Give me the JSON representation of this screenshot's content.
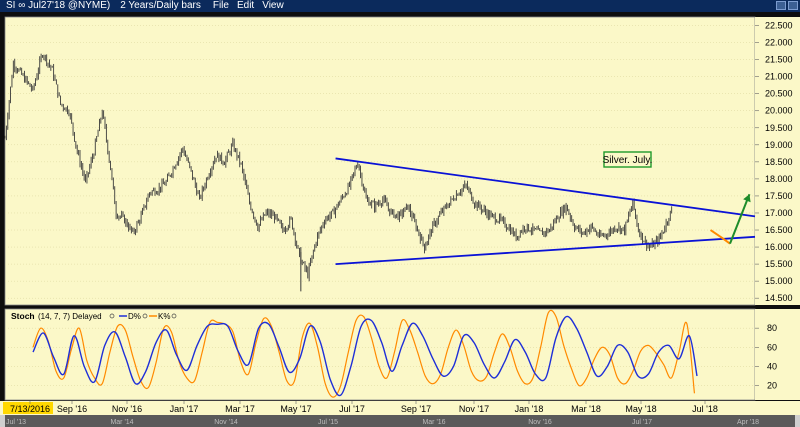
{
  "window": {
    "title": "SI ∞ Jul27'18 @NYME)",
    "interval": "2 Years/Daily bars",
    "menus": [
      "File",
      "Edit",
      "View"
    ]
  },
  "colors": {
    "panel_bg": "#fbf8c8",
    "price": "#3a3a3a",
    "trendline": "#0a12d6",
    "forecast_arrow": "#1e8c2a",
    "forecast_down": "#ff8a00",
    "d_line": "#1e2fd8",
    "k_line": "#ff8a00",
    "annotation_border": "#1e9a2a"
  },
  "chart_data": [
    {
      "type": "line",
      "subtype": "ohlc",
      "annotation": "Silver. July.",
      "y_axis_labels": [
        "22.500",
        "22.000",
        "21.500",
        "21.000",
        "20.500",
        "20.000",
        "19.500",
        "19.000",
        "18.500",
        "18.000",
        "17.500",
        "17.000",
        "16.500",
        "16.000",
        "15.500",
        "15.000",
        "14.500"
      ],
      "ylim": [
        14.3,
        22.75
      ],
      "x_labels": [
        "7/13/2016",
        "Sep '16",
        "Nov '16",
        "Jan '17",
        "Mar '17",
        "May '17",
        "Jul '17",
        "Sep '17",
        "Nov '17",
        "Jan '18",
        "Mar '18",
        "May '18",
        "Jul '18"
      ],
      "overview_labels": [
        "Jul '13",
        "Mar '14",
        "Nov '14",
        "Jul '15",
        "Mar '16",
        "Nov '16",
        "Jul '17",
        "Apr '18"
      ],
      "x_range_index": [
        0,
        540
      ],
      "series": [
        {
          "name": "",
          "x": [
            0,
            6,
            13,
            20,
            27,
            34,
            40,
            46,
            52,
            58,
            64,
            70,
            76,
            80,
            86,
            92,
            98,
            104,
            110,
            116,
            122,
            128,
            134,
            140,
            146,
            152,
            158,
            164,
            170,
            176,
            182,
            188,
            194,
            200,
            206,
            212,
            218,
            224,
            230,
            236,
            242,
            248,
            254,
            260,
            266,
            272,
            278,
            284,
            290,
            296,
            302,
            308,
            314,
            320,
            326,
            332,
            338,
            344,
            350,
            356,
            362,
            368,
            374,
            380,
            386,
            392,
            398,
            404,
            410,
            416,
            422,
            428,
            434,
            440,
            446,
            452,
            456,
            460,
            464,
            468,
            472,
            476,
            480
          ],
          "y": [
            19.2,
            21.4,
            21.0,
            20.6,
            21.7,
            21.2,
            20.2,
            20.0,
            18.8,
            17.9,
            18.8,
            20.0,
            18.3,
            17.0,
            16.8,
            16.4,
            16.9,
            17.6,
            17.7,
            17.9,
            18.4,
            18.9,
            18.2,
            17.4,
            18.1,
            18.7,
            18.5,
            19.0,
            18.4,
            17.3,
            16.6,
            17.0,
            16.9,
            16.5,
            16.8,
            15.7,
            15.2,
            16.2,
            16.8,
            17.0,
            17.4,
            17.8,
            18.5,
            17.4,
            17.2,
            17.4,
            17.0,
            16.9,
            17.2,
            16.6,
            16.0,
            16.6,
            17.0,
            17.3,
            17.6,
            17.8,
            17.3,
            17.1,
            16.9,
            16.8,
            16.6,
            16.3,
            16.6,
            16.5,
            16.4,
            16.5,
            16.9,
            17.2,
            16.6,
            16.4,
            16.6,
            16.3,
            16.4,
            16.6,
            16.5,
            17.3,
            16.5,
            16.2,
            16.0,
            16.1,
            16.3,
            16.7,
            17.1
          ]
        }
      ],
      "trendlines": [
        {
          "x": [
            238,
            540
          ],
          "y": [
            18.6,
            16.9
          ]
        },
        {
          "x": [
            238,
            540
          ],
          "y": [
            15.5,
            16.3
          ]
        }
      ],
      "forecast_arrow": {
        "x": [
          522,
          536
        ],
        "y": [
          16.1,
          17.55
        ]
      },
      "forecast_down": {
        "x": [
          508,
          517,
          522
        ],
        "y": [
          16.5,
          16.25,
          16.1
        ]
      }
    },
    {
      "type": "line",
      "title": "Stoch",
      "params": "(14, 7, 7) Delayed",
      "legend": [
        "D%",
        "K%"
      ],
      "y_axis_labels": [
        "80",
        "60",
        "40",
        "20"
      ],
      "ylim": [
        5,
        100
      ],
      "series": [
        {
          "name": "D%",
          "x": [
            0,
            8,
            16,
            24,
            32,
            40,
            48,
            56,
            64,
            72,
            80,
            88,
            96,
            104,
            112,
            120,
            128,
            136,
            144,
            152,
            160,
            168,
            176,
            184,
            192,
            200,
            208,
            216,
            224,
            232,
            240,
            248,
            256,
            264,
            272,
            280,
            288,
            296,
            304,
            312,
            320,
            328,
            336,
            344,
            352,
            360,
            368,
            376,
            384,
            392,
            400,
            408,
            416,
            424,
            432,
            440,
            448,
            456,
            464,
            472,
            480,
            488,
            496,
            504,
            512,
            518
          ],
          "y": [
            55,
            75,
            50,
            32,
            72,
            40,
            24,
            62,
            76,
            50,
            22,
            35,
            65,
            78,
            52,
            36,
            62,
            82,
            84,
            82,
            56,
            42,
            80,
            84,
            60,
            34,
            48,
            82,
            66,
            26,
            10,
            40,
            82,
            88,
            65,
            35,
            62,
            85,
            72,
            48,
            30,
            40,
            72,
            65,
            42,
            28,
            45,
            68,
            55,
            32,
            28,
            70,
            92,
            80,
            55,
            30,
            40,
            62,
            55,
            30,
            32,
            55,
            62,
            48,
            72,
            30
          ]
        },
        {
          "name": "K%",
          "x": [
            0,
            6,
            12,
            18,
            24,
            30,
            36,
            42,
            48,
            54,
            60,
            66,
            72,
            78,
            84,
            90,
            96,
            102,
            108,
            114,
            120,
            126,
            132,
            138,
            144,
            150,
            156,
            162,
            168,
            174,
            180,
            186,
            192,
            198,
            204,
            210,
            216,
            222,
            228,
            234,
            240,
            246,
            252,
            258,
            264,
            270,
            276,
            282,
            288,
            294,
            300,
            306,
            312,
            318,
            324,
            330,
            336,
            342,
            348,
            354,
            360,
            366,
            372,
            378,
            384,
            390,
            396,
            402,
            408,
            414,
            420,
            426,
            432,
            438,
            444,
            450,
            456,
            462,
            468,
            474,
            480,
            486,
            492,
            498,
            504,
            510,
            516
          ],
          "y": [
            60,
            80,
            66,
            35,
            28,
            58,
            80,
            46,
            28,
            22,
            55,
            82,
            78,
            50,
            25,
            18,
            44,
            80,
            76,
            45,
            28,
            25,
            55,
            86,
            86,
            84,
            76,
            45,
            32,
            65,
            90,
            82,
            55,
            25,
            25,
            70,
            85,
            60,
            22,
            8,
            20,
            55,
            88,
            92,
            70,
            40,
            28,
            55,
            88,
            78,
            55,
            30,
            22,
            32,
            60,
            78,
            62,
            35,
            25,
            30,
            55,
            74,
            60,
            35,
            22,
            28,
            60,
            96,
            92,
            62,
            38,
            20,
            28,
            48,
            60,
            52,
            28,
            22,
            35,
            56,
            62,
            54,
            42,
            28,
            55,
            85,
            12
          ]
        }
      ]
    }
  ]
}
